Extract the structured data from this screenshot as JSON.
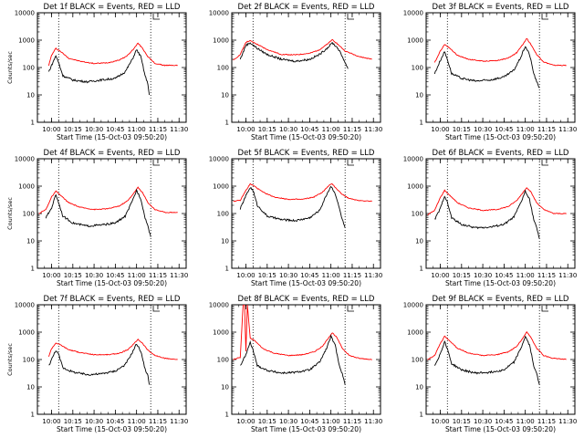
{
  "chart_data": [
    {
      "type": "line",
      "title": "Det 1f BLACK = Events, RED = LLD",
      "xlabel": "Start Time (15-Oct-03 09:50:20)",
      "ylabel": "Counts/sec",
      "xticks": [
        "10:00",
        "10:15",
        "10:30",
        "10:45",
        "11:00",
        "11:15",
        "11:30"
      ],
      "yticks": [
        "1",
        "10",
        "100",
        "1000",
        "10000"
      ],
      "ylim": [
        1,
        10000
      ],
      "yscale": "log",
      "vlines": [
        "10:05",
        "11:10"
      ],
      "series": [
        {
          "color": "#ff0000",
          "x": [
            "09:58",
            "10:00",
            "10:03",
            "10:06",
            "10:12",
            "10:20",
            "10:30",
            "10:40",
            "10:48",
            "10:53",
            "10:58",
            "11:01",
            "11:04",
            "11:08",
            "11:13",
            "11:20",
            "11:29"
          ],
          "y": [
            120,
            280,
            500,
            400,
            220,
            170,
            140,
            150,
            190,
            260,
            480,
            780,
            520,
            250,
            140,
            120,
            120
          ]
        },
        {
          "color": "#000000",
          "x": [
            "09:58",
            "10:00",
            "10:03",
            "10:05",
            "10:08",
            "10:15",
            "10:25",
            "10:35",
            "10:45",
            "10:52",
            "10:57",
            "11:00",
            "11:03",
            "11:06",
            "11:08",
            "11:09"
          ],
          "y": [
            70,
            120,
            270,
            150,
            50,
            35,
            30,
            35,
            40,
            70,
            200,
            450,
            250,
            50,
            25,
            10
          ]
        }
      ]
    },
    {
      "type": "line",
      "title": "Det 2f BLACK = Events, RED = LLD",
      "xlabel": "Start Time (15-Oct-03 09:50:20)",
      "ylabel": "",
      "xticks": [
        "10:00",
        "10:15",
        "10:30",
        "10:45",
        "11:00",
        "11:15",
        "11:30"
      ],
      "yticks": [
        "1",
        "10",
        "100",
        "1000",
        "10000"
      ],
      "ylim": [
        1,
        10000
      ],
      "yscale": "log",
      "vlines": [
        "10:05",
        "11:10"
      ],
      "series": [
        {
          "color": "#ff0000",
          "x": [
            "09:51",
            "09:56",
            "10:00",
            "10:03",
            "10:08",
            "10:15",
            "10:25",
            "10:35",
            "10:45",
            "10:52",
            "10:58",
            "11:01",
            "11:05",
            "11:10",
            "11:20",
            "11:29"
          ],
          "y": [
            180,
            300,
            850,
            950,
            700,
            450,
            300,
            290,
            330,
            450,
            750,
            1050,
            700,
            400,
            250,
            200
          ]
        },
        {
          "color": "#000000",
          "x": [
            "09:56",
            "10:00",
            "10:03",
            "10:08",
            "10:15",
            "10:25",
            "10:35",
            "10:45",
            "10:52",
            "10:58",
            "11:01",
            "11:05",
            "11:09",
            "11:12"
          ],
          "y": [
            200,
            650,
            800,
            500,
            300,
            200,
            170,
            200,
            300,
            550,
            800,
            500,
            200,
            90
          ]
        }
      ]
    },
    {
      "type": "line",
      "title": "Det 3f BLACK = Events, RED = LLD",
      "xlabel": "Start Time (15-Oct-03 09:50:20)",
      "ylabel": "",
      "xticks": [
        "10:00",
        "10:15",
        "10:30",
        "10:45",
        "11:00",
        "11:15",
        "11:30"
      ],
      "yticks": [
        "1",
        "10",
        "100",
        "1000",
        "10000"
      ],
      "ylim": [
        1,
        10000
      ],
      "yscale": "log",
      "vlines": [
        "10:05",
        "11:10"
      ],
      "series": [
        {
          "color": "#ff0000",
          "x": [
            "09:56",
            "10:00",
            "10:03",
            "10:06",
            "10:12",
            "10:20",
            "10:30",
            "10:40",
            "10:48",
            "10:54",
            "10:59",
            "11:01",
            "11:04",
            "11:08",
            "11:13",
            "11:20",
            "11:29"
          ],
          "y": [
            150,
            400,
            700,
            550,
            280,
            200,
            170,
            180,
            220,
            350,
            800,
            1150,
            700,
            300,
            160,
            120,
            120
          ]
        },
        {
          "color": "#000000",
          "x": [
            "09:56",
            "10:00",
            "10:03",
            "10:05",
            "10:08",
            "10:15",
            "10:25",
            "10:35",
            "10:45",
            "10:52",
            "10:57",
            "11:00",
            "11:03",
            "11:06",
            "11:08",
            "11:10"
          ],
          "y": [
            60,
            180,
            380,
            200,
            60,
            40,
            32,
            35,
            45,
            80,
            250,
            600,
            300,
            60,
            30,
            18
          ]
        }
      ]
    },
    {
      "type": "line",
      "title": "Det 4f BLACK = Events, RED = LLD",
      "xlabel": "Start Time (15-Oct-03 09:50:20)",
      "ylabel": "Counts/sec",
      "xticks": [
        "10:00",
        "10:15",
        "10:30",
        "10:45",
        "11:00",
        "11:15",
        "11:30"
      ],
      "yticks": [
        "1",
        "10",
        "100",
        "1000",
        "10000"
      ],
      "ylim": [
        1,
        10000
      ],
      "yscale": "log",
      "vlines": [
        "10:05",
        "11:10"
      ],
      "series": [
        {
          "color": "#ff0000",
          "x": [
            "09:51",
            "09:56",
            "10:00",
            "10:03",
            "10:06",
            "10:12",
            "10:20",
            "10:30",
            "10:40",
            "10:48",
            "10:54",
            "10:59",
            "11:01",
            "11:04",
            "11:08",
            "11:13",
            "11:20",
            "11:29"
          ],
          "y": [
            100,
            140,
            400,
            650,
            480,
            250,
            170,
            140,
            150,
            190,
            300,
            650,
            900,
            600,
            250,
            140,
            110,
            110
          ]
        },
        {
          "color": "#000000",
          "x": [
            "09:56",
            "10:00",
            "10:03",
            "10:05",
            "10:08",
            "10:15",
            "10:25",
            "10:35",
            "10:45",
            "10:52",
            "10:57",
            "11:00",
            "11:03",
            "11:06",
            "11:08",
            "11:10"
          ],
          "y": [
            70,
            160,
            500,
            250,
            80,
            45,
            35,
            38,
            45,
            80,
            280,
            700,
            350,
            70,
            35,
            14
          ]
        }
      ]
    },
    {
      "type": "line",
      "title": "Det 5f BLACK = Events, RED = LLD",
      "xlabel": "Start Time (15-Oct-03 09:50:20)",
      "ylabel": "",
      "xticks": [
        "10:00",
        "10:15",
        "10:30",
        "10:45",
        "11:00",
        "11:15",
        "11:30"
      ],
      "yticks": [
        "1",
        "10",
        "100",
        "1000",
        "10000"
      ],
      "ylim": [
        1,
        10000
      ],
      "yscale": "log",
      "vlines": [
        "10:05",
        "11:10"
      ],
      "series": [
        {
          "color": "#ff0000",
          "x": [
            "09:51",
            "09:56",
            "10:00",
            "10:03",
            "10:06",
            "10:12",
            "10:20",
            "10:30",
            "10:40",
            "10:48",
            "10:54",
            "10:59",
            "11:01",
            "11:04",
            "11:08",
            "11:13",
            "11:20",
            "11:29"
          ],
          "y": [
            280,
            300,
            700,
            1200,
            1000,
            600,
            400,
            330,
            330,
            400,
            600,
            1100,
            1200,
            800,
            500,
            350,
            300,
            280
          ]
        },
        {
          "color": "#000000",
          "x": [
            "09:56",
            "10:00",
            "10:03",
            "10:05",
            "10:08",
            "10:15",
            "10:25",
            "10:35",
            "10:45",
            "10:52",
            "10:57",
            "11:00",
            "11:03",
            "11:06",
            "11:08",
            "11:10"
          ],
          "y": [
            150,
            450,
            900,
            700,
            200,
            80,
            60,
            55,
            70,
            130,
            500,
            1000,
            550,
            150,
            60,
            30
          ]
        }
      ]
    },
    {
      "type": "line",
      "title": "Det 6f BLACK = Events, RED = LLD",
      "xlabel": "Start Time (15-Oct-03 09:50:20)",
      "ylabel": "",
      "xticks": [
        "10:00",
        "10:15",
        "10:30",
        "10:45",
        "11:00",
        "11:15",
        "11:30"
      ],
      "yticks": [
        "1",
        "10",
        "100",
        "1000",
        "10000"
      ],
      "ylim": [
        1,
        10000
      ],
      "yscale": "log",
      "vlines": [
        "10:05",
        "11:10"
      ],
      "series": [
        {
          "color": "#ff0000",
          "x": [
            "09:51",
            "09:56",
            "10:00",
            "10:03",
            "10:06",
            "10:12",
            "10:20",
            "10:30",
            "10:40",
            "10:48",
            "10:54",
            "10:59",
            "11:01",
            "11:04",
            "11:08",
            "11:13",
            "11:20",
            "11:29"
          ],
          "y": [
            90,
            130,
            380,
            700,
            500,
            250,
            160,
            130,
            140,
            180,
            300,
            650,
            900,
            600,
            250,
            140,
            100,
            100
          ]
        },
        {
          "color": "#000000",
          "x": [
            "09:56",
            "10:00",
            "10:03",
            "10:05",
            "10:08",
            "10:15",
            "10:25",
            "10:35",
            "10:45",
            "10:52",
            "10:57",
            "11:00",
            "11:03",
            "11:06",
            "11:08",
            "11:10"
          ],
          "y": [
            60,
            150,
            450,
            250,
            70,
            40,
            30,
            32,
            40,
            75,
            260,
            650,
            320,
            60,
            30,
            12
          ]
        }
      ]
    },
    {
      "type": "line",
      "title": "Det 7f BLACK = Events, RED = LLD",
      "xlabel": "Start Time (15-Oct-03 09:50:20)",
      "ylabel": "Counts/sec",
      "xticks": [
        "10:00",
        "10:15",
        "10:30",
        "10:45",
        "11:00",
        "11:15",
        "11:30"
      ],
      "yticks": [
        "1",
        "10",
        "100",
        "1000",
        "10000"
      ],
      "ylim": [
        1,
        10000
      ],
      "yscale": "log",
      "vlines": [
        "10:05",
        "11:10"
      ],
      "series": [
        {
          "color": "#ff0000",
          "x": [
            "09:58",
            "10:00",
            "10:03",
            "10:06",
            "10:12",
            "10:20",
            "10:30",
            "10:40",
            "10:48",
            "10:54",
            "10:59",
            "11:01",
            "11:04",
            "11:08",
            "11:13",
            "11:20",
            "11:29"
          ],
          "y": [
            130,
            250,
            400,
            350,
            230,
            180,
            150,
            150,
            170,
            230,
            420,
            550,
            400,
            220,
            140,
            110,
            100
          ]
        },
        {
          "color": "#000000",
          "x": [
            "09:58",
            "10:00",
            "10:03",
            "10:05",
            "10:08",
            "10:15",
            "10:25",
            "10:35",
            "10:45",
            "10:52",
            "10:57",
            "11:00",
            "11:03",
            "11:06",
            "11:08",
            "11:09"
          ],
          "y": [
            60,
            100,
            220,
            150,
            50,
            35,
            28,
            30,
            38,
            65,
            180,
            380,
            200,
            45,
            25,
            12
          ]
        }
      ]
    },
    {
      "type": "line",
      "title": "Det 8f BLACK = Events, RED = LLD",
      "xlabel": "Start Time (15-Oct-03 09:50:20)",
      "ylabel": "",
      "xticks": [
        "10:00",
        "10:15",
        "10:30",
        "10:45",
        "11:00",
        "11:15",
        "11:30"
      ],
      "yticks": [
        "1",
        "10",
        "100",
        "1000",
        "10000"
      ],
      "ylim": [
        1,
        10000
      ],
      "yscale": "log",
      "vlines": [
        "10:05",
        "11:10"
      ],
      "series": [
        {
          "color": "#ff0000",
          "x": [
            "09:51",
            "09:56",
            "09:58",
            "09:59",
            "10:00",
            "10:01",
            "10:03",
            "10:06",
            "10:12",
            "10:20",
            "10:30",
            "10:40",
            "10:48",
            "10:54",
            "10:59",
            "11:01",
            "11:04",
            "11:08",
            "11:13",
            "11:20",
            "11:29"
          ],
          "y": [
            100,
            120,
            10000,
            10000,
            200,
            10000,
            600,
            500,
            250,
            170,
            140,
            150,
            190,
            300,
            700,
            950,
            650,
            260,
            140,
            110,
            100
          ]
        },
        {
          "color": "#000000",
          "x": [
            "09:56",
            "10:00",
            "10:03",
            "10:05",
            "10:08",
            "10:15",
            "10:25",
            "10:35",
            "10:45",
            "10:52",
            "10:57",
            "11:00",
            "11:03",
            "11:06",
            "11:08",
            "11:10"
          ],
          "y": [
            60,
            150,
            420,
            220,
            60,
            40,
            32,
            34,
            42,
            80,
            260,
            700,
            330,
            60,
            30,
            12
          ]
        }
      ]
    },
    {
      "type": "line",
      "title": "Det 9f BLACK = Events, RED = LLD",
      "xlabel": "Start Time (15-Oct-03 09:50:20)",
      "ylabel": "",
      "xticks": [
        "10:00",
        "10:15",
        "10:30",
        "10:45",
        "11:00",
        "11:15",
        "11:30"
      ],
      "yticks": [
        "1",
        "10",
        "100",
        "1000",
        "10000"
      ],
      "ylim": [
        1,
        10000
      ],
      "yscale": "log",
      "vlines": [
        "10:05",
        "11:10"
      ],
      "series": [
        {
          "color": "#ff0000",
          "x": [
            "09:51",
            "09:56",
            "10:00",
            "10:03",
            "10:06",
            "10:12",
            "10:20",
            "10:30",
            "10:40",
            "10:48",
            "10:54",
            "10:59",
            "11:01",
            "11:04",
            "11:08",
            "11:13",
            "11:20",
            "11:29"
          ],
          "y": [
            100,
            140,
            380,
            700,
            520,
            260,
            170,
            140,
            150,
            190,
            300,
            700,
            1000,
            650,
            260,
            140,
            110,
            100
          ]
        },
        {
          "color": "#000000",
          "x": [
            "09:56",
            "10:00",
            "10:03",
            "10:05",
            "10:08",
            "10:15",
            "10:25",
            "10:35",
            "10:45",
            "10:52",
            "10:57",
            "11:00",
            "11:03",
            "11:06",
            "11:08",
            "11:10"
          ],
          "y": [
            60,
            160,
            450,
            250,
            70,
            42,
            32,
            34,
            42,
            80,
            260,
            700,
            330,
            60,
            30,
            12
          ]
        }
      ]
    }
  ]
}
